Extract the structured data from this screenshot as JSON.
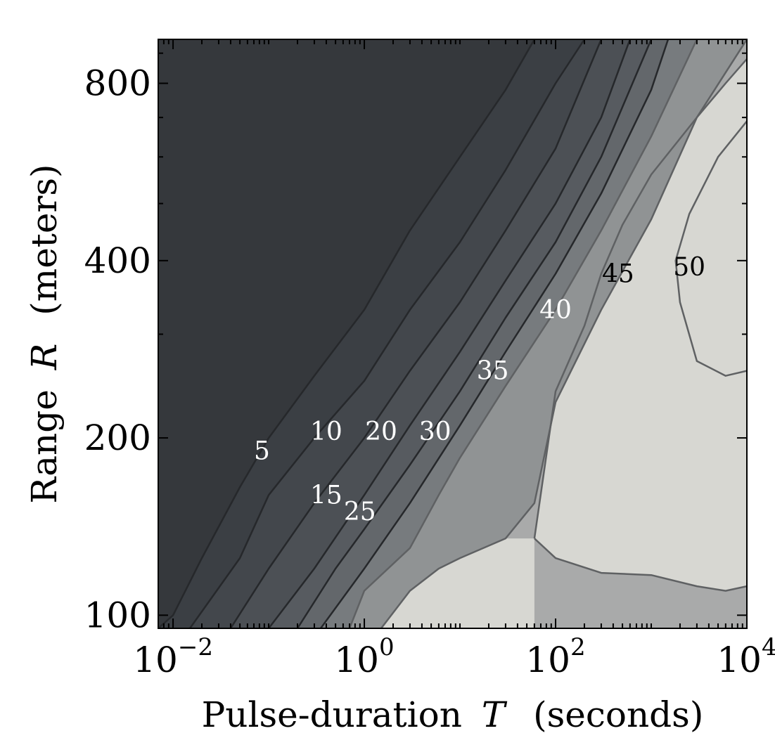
{
  "chart_data": {
    "type": "contour",
    "xlabel_main": "Pulse-duration",
    "xlabel_var": "T",
    "xlabel_unit": "(seconds)",
    "ylabel_main": "Range",
    "ylabel_var": "R",
    "ylabel_unit": "(meters)",
    "x_scale": "log",
    "y_scale": "log",
    "xlim": [
      0.007,
      10000
    ],
    "ylim": [
      95,
      950
    ],
    "x_ticks": [
      {
        "value": 0.01,
        "base": "10",
        "exp": "−2"
      },
      {
        "value": 1,
        "base": "10",
        "exp": "0"
      },
      {
        "value": 100,
        "base": "10",
        "exp": "2"
      },
      {
        "value": 10000,
        "base": "10",
        "exp": "4"
      }
    ],
    "y_ticks": [
      {
        "value": 100,
        "label": "100"
      },
      {
        "value": 200,
        "label": "200"
      },
      {
        "value": 400,
        "label": "400"
      },
      {
        "value": 800,
        "label": "800"
      }
    ],
    "levels": [
      5,
      10,
      15,
      20,
      25,
      30,
      35,
      40,
      45,
      50
    ],
    "fill_colors": [
      "#35383c",
      "#3b3f44",
      "#43474c",
      "#4c5055",
      "#575b60",
      "#63676b",
      "#777b7e",
      "#909394",
      "#a9aaaa",
      "#c3c3c0",
      "#d7d7d2"
    ],
    "contours": [
      {
        "level": 5,
        "points": [
          [
            0.007,
            95
          ],
          [
            0.01,
            100
          ],
          [
            0.02,
            125
          ],
          [
            0.05,
            165
          ],
          [
            0.1,
            200
          ],
          [
            0.3,
            255
          ],
          [
            1,
            330
          ],
          [
            3,
            450
          ],
          [
            10,
            600
          ],
          [
            30,
            780
          ],
          [
            60,
            950
          ]
        ]
      },
      {
        "level": 10,
        "points": [
          [
            0.015,
            95
          ],
          [
            0.05,
            125
          ],
          [
            0.1,
            160
          ],
          [
            0.3,
            200
          ],
          [
            1,
            250
          ],
          [
            3,
            330
          ],
          [
            10,
            430
          ],
          [
            30,
            570
          ],
          [
            100,
            800
          ],
          [
            200,
            950
          ]
        ]
      },
      {
        "level": 15,
        "points": [
          [
            0.04,
            95
          ],
          [
            0.1,
            120
          ],
          [
            0.3,
            155
          ],
          [
            1,
            200
          ],
          [
            3,
            260
          ],
          [
            10,
            340
          ],
          [
            30,
            450
          ],
          [
            100,
            620
          ],
          [
            300,
            950
          ]
        ]
      },
      {
        "level": 20,
        "points": [
          [
            0.1,
            95
          ],
          [
            0.3,
            120
          ],
          [
            1,
            160
          ],
          [
            3,
            210
          ],
          [
            10,
            280
          ],
          [
            30,
            370
          ],
          [
            100,
            500
          ],
          [
            300,
            700
          ],
          [
            600,
            950
          ]
        ]
      },
      {
        "level": 25,
        "points": [
          [
            0.2,
            95
          ],
          [
            0.5,
            120
          ],
          [
            1,
            140
          ],
          [
            3,
            180
          ],
          [
            10,
            240
          ],
          [
            30,
            320
          ],
          [
            100,
            430
          ],
          [
            300,
            600
          ],
          [
            1000,
            950
          ]
        ]
      },
      {
        "level": 30,
        "points": [
          [
            0.35,
            95
          ],
          [
            1,
            120
          ],
          [
            3,
            155
          ],
          [
            10,
            210
          ],
          [
            30,
            280
          ],
          [
            100,
            380
          ],
          [
            300,
            520
          ],
          [
            1000,
            780
          ],
          [
            1500,
            950
          ]
        ]
      },
      {
        "level": 35,
        "points": [
          [
            0.7,
            95
          ],
          [
            1,
            110
          ],
          [
            3,
            130
          ],
          [
            6,
            160
          ],
          [
            10,
            185
          ],
          [
            30,
            245
          ],
          [
            100,
            330
          ],
          [
            300,
            450
          ],
          [
            1000,
            650
          ],
          [
            3000,
            950
          ]
        ]
      },
      {
        "level": 40,
        "points": [
          [
            1.5,
            95
          ],
          [
            3,
            110
          ],
          [
            6,
            120
          ],
          [
            10,
            125
          ],
          [
            30,
            135
          ],
          [
            60,
            155
          ],
          [
            100,
            230
          ],
          [
            300,
            330
          ],
          [
            1000,
            470
          ],
          [
            3000,
            700
          ],
          [
            10000,
            950
          ]
        ]
      },
      {
        "level": 45,
        "points": [
          [
            60,
            135
          ],
          [
            100,
            125
          ],
          [
            300,
            118
          ],
          [
            1000,
            117
          ],
          [
            3000,
            112
          ],
          [
            6000,
            110
          ],
          [
            10000,
            112
          ]
        ]
      },
      {
        "level": 45,
        "points": [
          [
            60,
            135
          ],
          [
            100,
            240
          ],
          [
            200,
            310
          ],
          [
            300,
            380
          ],
          [
            500,
            460
          ],
          [
            1000,
            560
          ],
          [
            3000,
            700
          ],
          [
            6000,
            800
          ],
          [
            10000,
            880
          ]
        ]
      },
      {
        "level": 50,
        "points": [
          [
            10000,
            260
          ],
          [
            6000,
            255
          ],
          [
            3000,
            270
          ],
          [
            2000,
            340
          ],
          [
            1800,
            400
          ],
          [
            2500,
            480
          ],
          [
            5000,
            600
          ],
          [
            10000,
            690
          ]
        ]
      }
    ],
    "labels": [
      {
        "text": "5",
        "x": 0.085,
        "y": 190,
        "color": "#ffffff"
      },
      {
        "text": "10",
        "x": 0.4,
        "y": 205,
        "color": "#ffffff"
      },
      {
        "text": "15",
        "x": 0.4,
        "y": 160,
        "color": "#ffffff"
      },
      {
        "text": "20",
        "x": 1.5,
        "y": 205,
        "color": "#ffffff"
      },
      {
        "text": "25",
        "x": 0.9,
        "y": 150,
        "color": "#ffffff"
      },
      {
        "text": "30",
        "x": 5.5,
        "y": 205,
        "color": "#ffffff"
      },
      {
        "text": "35",
        "x": 22,
        "y": 260,
        "color": "#ffffff"
      },
      {
        "text": "40",
        "x": 100,
        "y": 330,
        "color": "#ffffff"
      },
      {
        "text": "45",
        "x": 450,
        "y": 380,
        "color": "#000000"
      },
      {
        "text": "50",
        "x": 2500,
        "y": 390,
        "color": "#000000"
      }
    ]
  }
}
